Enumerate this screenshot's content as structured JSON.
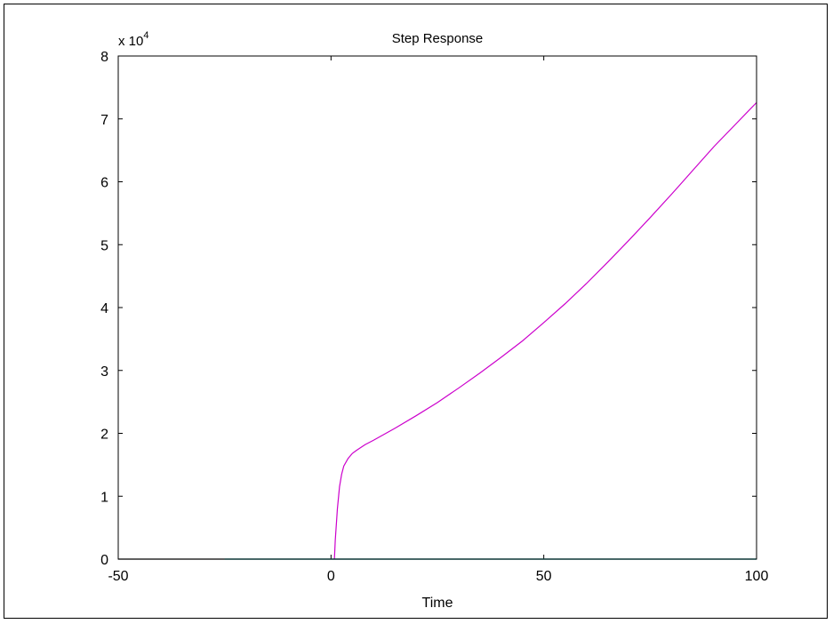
{
  "chart_data": {
    "type": "line",
    "title": "Step Response",
    "xlabel": "Time",
    "ylabel": "",
    "xlim": [
      -50,
      100
    ],
    "ylim": [
      0,
      80000
    ],
    "y_exponent_label": "x 10",
    "y_exponent_power": "4",
    "x_ticks": [
      -50,
      0,
      50,
      100
    ],
    "x_tick_labels": [
      "-50",
      "0",
      "50",
      "100"
    ],
    "y_ticks": [
      0,
      10000,
      20000,
      30000,
      40000,
      50000,
      60000,
      70000,
      80000
    ],
    "y_tick_labels": [
      "0",
      "1",
      "2",
      "3",
      "4",
      "5",
      "6",
      "7",
      "8"
    ],
    "grid": false,
    "series": [
      {
        "color": "#000000",
        "x": [
          -50,
          -25
        ],
        "y": [
          0,
          0
        ]
      },
      {
        "color": "#cc00cc",
        "x": [
          0.8,
          1.0,
          1.5,
          2.0,
          2.5,
          3.0,
          4.0,
          5.0,
          6.0,
          8.0,
          10.0,
          15.0,
          20.0,
          25.0,
          30.0,
          35.0,
          40.0,
          45.0,
          50.0,
          55.0,
          60.0,
          65.0,
          70.0,
          75.0,
          80.0,
          85.0,
          90.0,
          95.0,
          100.0
        ],
        "y": [
          0,
          3000,
          8000,
          11500,
          13500,
          14800,
          16000,
          16800,
          17300,
          18200,
          18900,
          20800,
          22800,
          24900,
          27200,
          29600,
          32100,
          34700,
          37600,
          40600,
          43800,
          47200,
          50700,
          54300,
          58000,
          61800,
          65600,
          69100,
          72600
        ]
      },
      {
        "color": "#20a0a0",
        "x": [
          -25,
          100
        ],
        "y": [
          0,
          0
        ]
      }
    ]
  }
}
